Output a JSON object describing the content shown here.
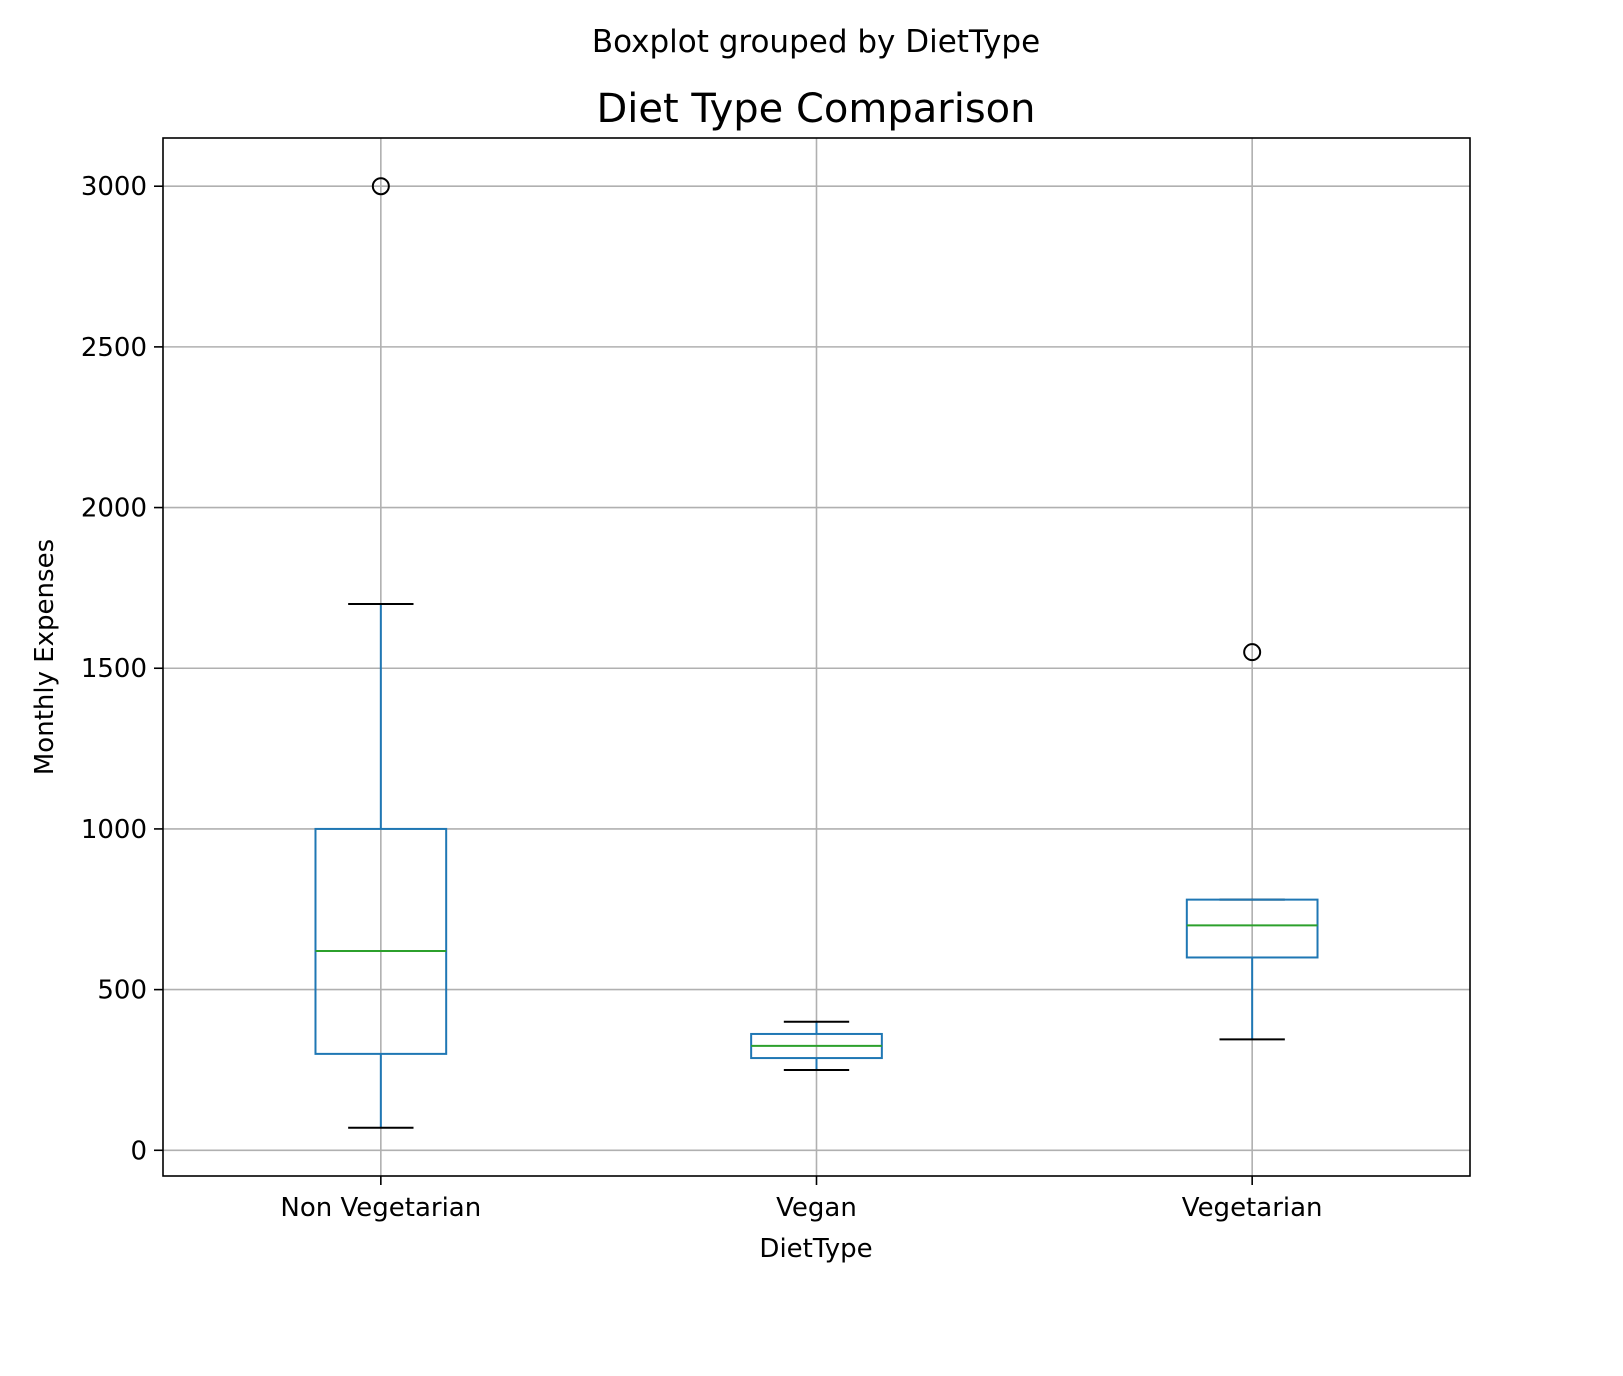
{
  "chart_data": {
    "type": "box",
    "suptitle": "Boxplot grouped by DietType",
    "title": "Diet Type Comparison",
    "xlabel": "DietType",
    "ylabel": "Monthly Expenses",
    "ylim": [
      -80,
      3150
    ],
    "yticks": [
      0,
      500,
      1000,
      1500,
      2000,
      2500,
      3000
    ],
    "grid": true,
    "categories": [
      "Non Vegetarian",
      "Vegan",
      "Vegetarian"
    ],
    "boxes": [
      {
        "category": "Non Vegetarian",
        "whisker_low": 70,
        "q1": 300,
        "median": 620,
        "q3": 1000,
        "whisker_high": 1700,
        "outliers": [
          3000
        ]
      },
      {
        "category": "Vegan",
        "whisker_low": 250,
        "q1": 287,
        "median": 325,
        "q3": 362,
        "whisker_high": 400,
        "outliers": []
      },
      {
        "category": "Vegetarian",
        "whisker_low": 345,
        "q1": 600,
        "median": 700,
        "q3": 780,
        "whisker_high": 780,
        "outliers": [
          1550
        ]
      }
    ],
    "colors": {
      "box": "#1f77b4",
      "median": "#2ca02c",
      "whisker_cap": "#000000",
      "grid": "#b0b0b0",
      "outlier": "#000000"
    }
  }
}
